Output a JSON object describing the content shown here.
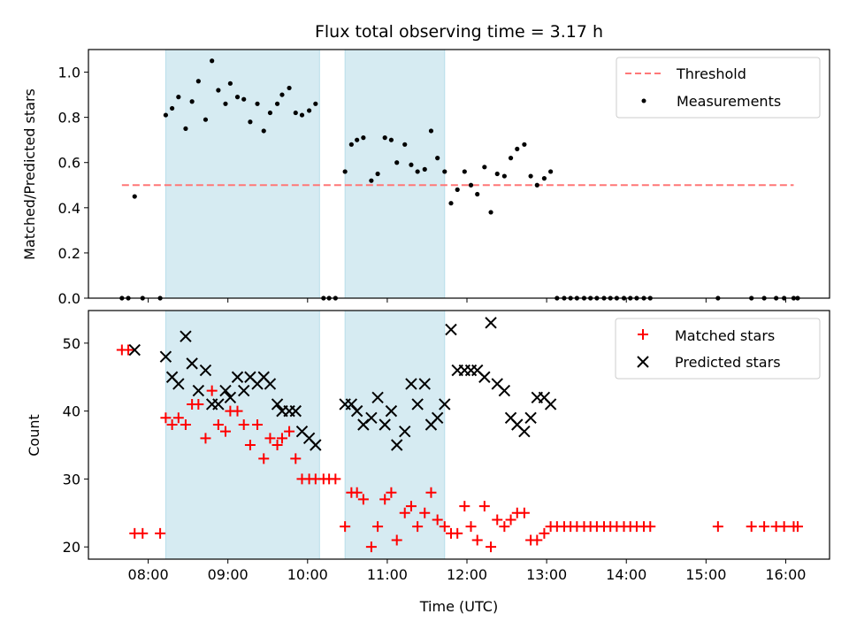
{
  "chart_data": [
    {
      "type": "scatter",
      "title": "Flux total observing time = 3.17 h",
      "ylabel": "Matched/Predicted stars",
      "xlabel": "",
      "xlim": [
        7.25,
        16.55
      ],
      "ylim": [
        0,
        1.1
      ],
      "grid": false,
      "legend_position": "top-right",
      "shaded_intervals": [
        [
          8.22,
          10.15
        ],
        [
          10.47,
          11.72
        ]
      ],
      "x_ticks": [
        8,
        9,
        10,
        11,
        12,
        13,
        14,
        15,
        16
      ],
      "y_ticks": [
        0.0,
        0.2,
        0.4,
        0.6,
        0.8,
        1.0
      ],
      "y_tick_labels": [
        "0.0",
        "0.2",
        "0.4",
        "0.6",
        "0.8",
        "1.0"
      ],
      "threshold": {
        "name": "Threshold",
        "value": 0.5,
        "x_range": [
          7.67,
          16.1
        ],
        "color": "#ff7777"
      },
      "series": [
        {
          "name": "Measurements",
          "color": "#000000",
          "x": [
            7.67,
            7.75,
            7.83,
            7.93,
            8.15,
            8.22,
            8.3,
            8.38,
            8.47,
            8.55,
            8.63,
            8.72,
            8.8,
            8.88,
            8.97,
            9.03,
            9.12,
            9.2,
            9.28,
            9.37,
            9.45,
            9.53,
            9.62,
            9.68,
            9.77,
            9.85,
            9.93,
            10.02,
            10.1,
            10.2,
            10.27,
            10.35,
            10.47,
            10.55,
            10.62,
            10.7,
            10.8,
            10.88,
            10.97,
            11.05,
            11.12,
            11.22,
            11.3,
            11.38,
            11.47,
            11.55,
            11.63,
            11.72,
            11.8,
            11.88,
            11.97,
            12.05,
            12.13,
            12.22,
            12.3,
            12.38,
            12.47,
            12.55,
            12.63,
            12.72,
            12.8,
            12.88,
            12.97,
            13.05,
            13.13,
            13.22,
            13.3,
            13.38,
            13.47,
            13.55,
            13.63,
            13.72,
            13.8,
            13.88,
            13.97,
            14.05,
            14.13,
            14.22,
            14.3,
            15.15,
            15.57,
            15.73,
            15.88,
            15.98,
            16.1,
            16.15
          ],
          "y": [
            0.0,
            0.0,
            0.45,
            0.0,
            0.0,
            0.81,
            0.84,
            0.89,
            0.75,
            0.87,
            0.96,
            0.79,
            1.05,
            0.92,
            0.86,
            0.95,
            0.89,
            0.88,
            0.78,
            0.86,
            0.74,
            0.82,
            0.86,
            0.9,
            0.93,
            0.82,
            0.81,
            0.83,
            0.86,
            0.0,
            0.0,
            0.0,
            0.56,
            0.68,
            0.7,
            0.71,
            0.52,
            0.55,
            0.71,
            0.7,
            0.6,
            0.68,
            0.59,
            0.56,
            0.57,
            0.74,
            0.62,
            0.56,
            0.42,
            0.48,
            0.56,
            0.5,
            0.46,
            0.58,
            0.38,
            0.55,
            0.54,
            0.62,
            0.66,
            0.68,
            0.54,
            0.5,
            0.53,
            0.56,
            0.0,
            0.0,
            0.0,
            0.0,
            0.0,
            0.0,
            0.0,
            0.0,
            0.0,
            0.0,
            0.0,
            0.0,
            0.0,
            0.0,
            0.0,
            0.0,
            0.0,
            0.0,
            0.0,
            0.0,
            0.0,
            0.0
          ]
        }
      ]
    },
    {
      "type": "scatter",
      "title": "",
      "ylabel": "Count",
      "xlabel": "Time (UTC)",
      "xlim": [
        7.25,
        16.55
      ],
      "ylim": [
        18.2,
        54.8
      ],
      "grid": false,
      "legend_position": "top-right",
      "shaded_intervals": [
        [
          8.22,
          10.15
        ],
        [
          10.47,
          11.72
        ]
      ],
      "x_ticks": [
        8,
        9,
        10,
        11,
        12,
        13,
        14,
        15,
        16
      ],
      "x_tick_labels": [
        "08:00",
        "09:00",
        "10:00",
        "11:00",
        "12:00",
        "13:00",
        "14:00",
        "15:00",
        "16:00"
      ],
      "y_ticks": [
        20,
        30,
        40,
        50
      ],
      "y_tick_labels": [
        "20",
        "30",
        "40",
        "50"
      ],
      "series": [
        {
          "name": "Matched stars",
          "color": "#ff0000",
          "x": [
            7.67,
            7.75,
            7.83,
            7.93,
            8.15,
            8.22,
            8.3,
            8.38,
            8.47,
            8.55,
            8.63,
            8.72,
            8.8,
            8.88,
            8.97,
            9.03,
            9.12,
            9.2,
            9.28,
            9.37,
            9.45,
            9.53,
            9.62,
            9.68,
            9.77,
            9.85,
            9.93,
            10.02,
            10.1,
            10.2,
            10.27,
            10.35,
            10.47,
            10.55,
            10.62,
            10.7,
            10.8,
            10.88,
            10.97,
            11.05,
            11.12,
            11.22,
            11.3,
            11.38,
            11.47,
            11.55,
            11.63,
            11.72,
            11.8,
            11.88,
            11.97,
            12.05,
            12.13,
            12.22,
            12.3,
            12.38,
            12.47,
            12.55,
            12.63,
            12.72,
            12.8,
            12.88,
            12.97,
            13.05,
            13.13,
            13.22,
            13.3,
            13.38,
            13.47,
            13.55,
            13.63,
            13.72,
            13.8,
            13.88,
            13.97,
            14.05,
            14.13,
            14.22,
            14.3,
            15.15,
            15.57,
            15.73,
            15.88,
            15.98,
            16.1,
            16.15
          ],
          "y": [
            49,
            49,
            22,
            22,
            22,
            39,
            38,
            39,
            38,
            41,
            41,
            36,
            43,
            38,
            37,
            40,
            40,
            38,
            35,
            38,
            33,
            36,
            35,
            36,
            37,
            33,
            30,
            30,
            30,
            30,
            30,
            30,
            23,
            28,
            28,
            27,
            20,
            23,
            27,
            28,
            21,
            25,
            26,
            23,
            25,
            28,
            24,
            23,
            22,
            22,
            26,
            23,
            21,
            26,
            20,
            24,
            23,
            24,
            25,
            25,
            21,
            21,
            22,
            23,
            23,
            23,
            23,
            23,
            23,
            23,
            23,
            23,
            23,
            23,
            23,
            23,
            23,
            23,
            23,
            23,
            23,
            23,
            23,
            23,
            23,
            23
          ]
        },
        {
          "name": "Predicted stars",
          "color": "#000000",
          "x": [
            7.83,
            8.22,
            8.3,
            8.38,
            8.47,
            8.55,
            8.63,
            8.72,
            8.8,
            8.88,
            8.97,
            9.03,
            9.12,
            9.2,
            9.28,
            9.37,
            9.45,
            9.53,
            9.62,
            9.68,
            9.77,
            9.85,
            9.93,
            10.02,
            10.1,
            10.47,
            10.55,
            10.62,
            10.7,
            10.8,
            10.88,
            10.97,
            11.05,
            11.12,
            11.22,
            11.3,
            11.38,
            11.47,
            11.55,
            11.63,
            11.72,
            11.8,
            11.88,
            11.97,
            12.05,
            12.13,
            12.22,
            12.3,
            12.38,
            12.47,
            12.55,
            12.63,
            12.72,
            12.8,
            12.88,
            12.97,
            13.05
          ],
          "y": [
            49,
            48,
            45,
            44,
            51,
            47,
            43,
            46,
            41,
            41,
            43,
            42,
            45,
            43,
            45,
            44,
            45,
            44,
            41,
            40,
            40,
            40,
            37,
            36,
            35,
            41,
            41,
            40,
            38,
            39,
            42,
            38,
            40,
            35,
            37,
            44,
            41,
            44,
            38,
            39,
            41,
            52,
            46,
            46,
            46,
            46,
            45,
            53,
            44,
            43,
            39,
            38,
            37,
            39,
            42,
            42,
            41
          ]
        }
      ]
    }
  ]
}
